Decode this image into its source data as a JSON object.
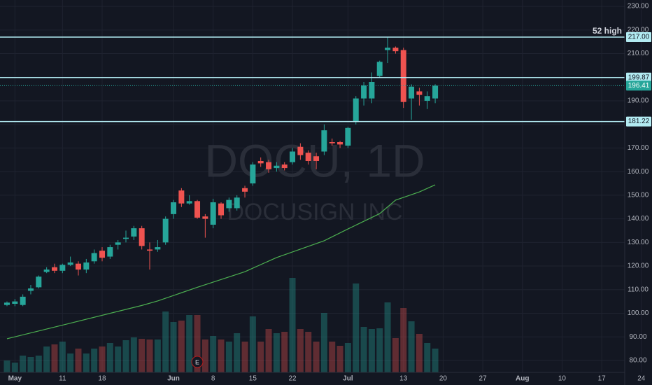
{
  "chart_data": {
    "type": "candlestick",
    "watermark": {
      "title": "DOCU, 1D",
      "subtitle": "DOCUSIGN INC"
    },
    "x": [
      0,
      1,
      2,
      3,
      4,
      5,
      6,
      7,
      8,
      9,
      10,
      11,
      12,
      13,
      14,
      15,
      16,
      17,
      18,
      19,
      20,
      21,
      22,
      23,
      24,
      25,
      26,
      27,
      28,
      29,
      30,
      31,
      32,
      33,
      34,
      35,
      36,
      37,
      38,
      39,
      40,
      41,
      42,
      43,
      44,
      45,
      46,
      47,
      48,
      49,
      50,
      51,
      52,
      53,
      54
    ],
    "open": [
      103.5,
      104,
      103.5,
      109.5,
      111,
      117.5,
      119.5,
      118,
      120.5,
      121,
      118.5,
      122,
      126.5,
      124,
      129,
      131.5,
      132.5,
      136,
      127,
      127,
      130,
      142,
      152,
      146.5,
      147.5,
      141,
      137.5,
      146.5,
      144.5,
      144.5,
      153,
      155,
      164.5,
      164,
      161.5,
      163,
      164,
      170.5,
      168,
      166.5,
      168.5,
      172.5,
      172.5,
      171,
      181,
      191,
      191,
      200.5,
      211.5,
      212.5,
      211.5,
      191,
      194,
      190,
      191
    ],
    "high": [
      105,
      106,
      108,
      112,
      116,
      119.5,
      121,
      121,
      124,
      122,
      123,
      127,
      128,
      129,
      131,
      135,
      137,
      137,
      130,
      131,
      141,
      148,
      153,
      150,
      148,
      142,
      148.5,
      147,
      149,
      150,
      154,
      164,
      166,
      165,
      164,
      164,
      170,
      172,
      169,
      168,
      180,
      174,
      173,
      179,
      192,
      198,
      202,
      207,
      217,
      213,
      212.5,
      197,
      195.5,
      194,
      197
    ],
    "low": [
      103,
      103,
      103,
      108,
      110.5,
      117,
      117,
      117,
      120,
      116,
      117,
      121,
      122,
      123,
      127,
      130,
      131,
      127,
      118.5,
      126,
      129,
      140,
      145,
      146,
      140,
      132,
      136,
      140,
      143,
      143.5,
      149,
      154,
      162,
      159.5,
      160,
      160.5,
      163,
      165,
      163,
      161,
      167,
      171,
      170,
      170,
      180,
      188,
      189,
      200,
      206,
      210,
      187,
      182,
      188,
      186.5,
      189
    ],
    "close": [
      104.5,
      105,
      107,
      110.5,
      115.5,
      118.5,
      118,
      120.5,
      121.5,
      118.5,
      121.5,
      125.5,
      123.5,
      128,
      130,
      132,
      136,
      128.5,
      126.5,
      128,
      140,
      147,
      146.5,
      147.5,
      140.5,
      140,
      147,
      141.5,
      148,
      149,
      151.5,
      163,
      163.5,
      161,
      162.5,
      161.5,
      168.5,
      167,
      164.5,
      164.5,
      177.5,
      172,
      171.5,
      178.5,
      191,
      196.5,
      198,
      206.5,
      212.5,
      211,
      189.5,
      196,
      192.5,
      192,
      196.41
    ],
    "volume": [
      1.7,
      1.4,
      2.4,
      2.2,
      2.4,
      3.7,
      4.0,
      4.4,
      2.7,
      3.4,
      2.7,
      3.4,
      3.7,
      4.2,
      3.7,
      4.6,
      5.0,
      4.8,
      4.7,
      4.7,
      8.7,
      7.2,
      7.4,
      8.2,
      8.2,
      4.7,
      5.2,
      4.7,
      4.4,
      5.6,
      4.4,
      8.0,
      4.4,
      6.2,
      5.6,
      5.8,
      13.5,
      6.2,
      5.8,
      4.4,
      8.5,
      4.4,
      3.8,
      4.2,
      12.7,
      6.5,
      6.2,
      6.3,
      10.0,
      4.9,
      9.2,
      7.3,
      5.5,
      4.2,
      3.4
    ],
    "up_color": "#26a69a",
    "down_color": "#ef5350",
    "ma": {
      "color": "#4caf50",
      "x": [
        0,
        8,
        17,
        19,
        24,
        30,
        34,
        40,
        43,
        47,
        49,
        52,
        54
      ],
      "values": [
        89.2,
        95.8,
        103.3,
        105.2,
        111,
        117.6,
        123.6,
        130.7,
        135.7,
        142.2,
        147.9,
        151.4,
        154.4
      ]
    },
    "levels": [
      {
        "value": 217,
        "label": "217.00"
      },
      {
        "value": 199.87,
        "label": "199.87"
      },
      {
        "value": 181.22,
        "label": "181.22"
      }
    ],
    "level_color": "#b2ebf2",
    "annotation": "52 high",
    "last_price": {
      "value": 196.41,
      "label": "196.41"
    },
    "events": [
      {
        "x": 24,
        "label": "E"
      }
    ],
    "xlim": [
      -0.88,
      77.9
    ],
    "ylim": [
      69.6,
      232.7
    ],
    "xticks": [
      {
        "value": 1,
        "label": "May"
      },
      {
        "value": 7,
        "label": "11"
      },
      {
        "value": 12,
        "label": "18"
      },
      {
        "value": 21,
        "label": "Jun"
      },
      {
        "value": 26,
        "label": "8"
      },
      {
        "value": 31,
        "label": "15"
      },
      {
        "value": 36,
        "label": "22"
      },
      {
        "value": 43,
        "label": "Jul"
      },
      {
        "value": 50,
        "label": "13"
      },
      {
        "value": 55,
        "label": "20"
      },
      {
        "value": 60,
        "label": "27"
      },
      {
        "value": 65,
        "label": "Aug"
      },
      {
        "value": 70,
        "label": "10"
      },
      {
        "value": 75,
        "label": "17"
      },
      {
        "value": 80,
        "label": "24"
      }
    ],
    "yticks": [
      {
        "value": 80,
        "label": "80.00"
      },
      {
        "value": 90,
        "label": "90.00"
      },
      {
        "value": 100,
        "label": "100.00"
      },
      {
        "value": 110,
        "label": "110.00"
      },
      {
        "value": 120,
        "label": "120.00"
      },
      {
        "value": 130,
        "label": "130.00"
      },
      {
        "value": 140,
        "label": "140.00"
      },
      {
        "value": 150,
        "label": "150.00"
      },
      {
        "value": 160,
        "label": "160.00"
      },
      {
        "value": 170,
        "label": "170.00"
      },
      {
        "value": 180,
        "label": "180.00"
      },
      {
        "value": 190,
        "label": "190.00"
      },
      {
        "value": 200,
        "label": "200.00"
      },
      {
        "value": 210,
        "label": "210.00"
      },
      {
        "value": 220,
        "label": "220.00"
      },
      {
        "value": 230,
        "label": "230.00"
      }
    ],
    "grid": true
  }
}
